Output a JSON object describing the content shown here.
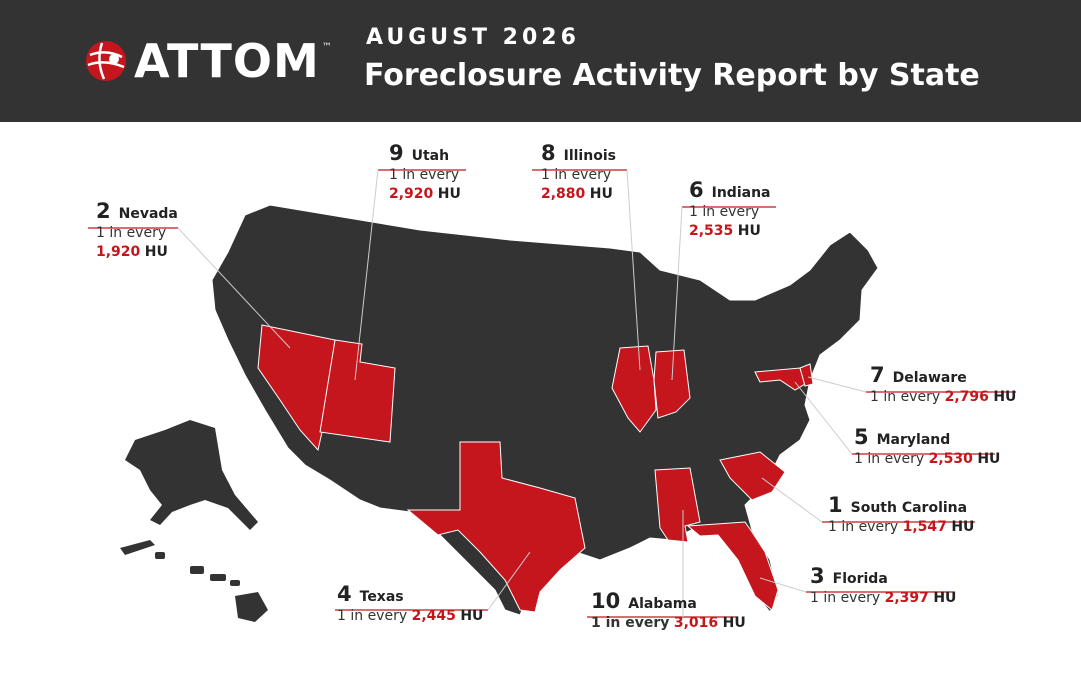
{
  "header": {
    "logo_text": "ATTOM",
    "logo_tm": "™",
    "month": "AUGUST 2026",
    "title": "Foreclosure Activity Report by State"
  },
  "colors": {
    "highlight": "#c4161c",
    "base_state": "#333333",
    "header_bg": "#333333"
  },
  "rankings": [
    {
      "rank": "1",
      "state": "South Carolina",
      "prefix": "1 in every",
      "value": "1,547",
      "unit": "HU"
    },
    {
      "rank": "2",
      "state": "Nevada",
      "prefix": "1 in every",
      "value": "1,920",
      "unit": "HU"
    },
    {
      "rank": "3",
      "state": "Florida",
      "prefix": "1 in every",
      "value": "2,397",
      "unit": "HU"
    },
    {
      "rank": "4",
      "state": "Texas",
      "prefix": "1 in every",
      "value": "2,445",
      "unit": "HU"
    },
    {
      "rank": "5",
      "state": "Maryland",
      "prefix": "1 in every",
      "value": "2,530",
      "unit": "HU"
    },
    {
      "rank": "6",
      "state": "Indiana",
      "prefix": "1 in every",
      "value": "2,535",
      "unit": "HU"
    },
    {
      "rank": "7",
      "state": "Delaware",
      "prefix": "1 in every",
      "value": "2,796",
      "unit": "HU"
    },
    {
      "rank": "8",
      "state": "Illinois",
      "prefix": "1 in every",
      "value": "2,880",
      "unit": "HU"
    },
    {
      "rank": "9",
      "state": "Utah",
      "prefix": "1 in every",
      "value": "2,920",
      "unit": "HU"
    },
    {
      "rank": "10",
      "state": "Alabama",
      "prefix": "1 in every",
      "value": "3,016",
      "unit": "HU"
    }
  ]
}
